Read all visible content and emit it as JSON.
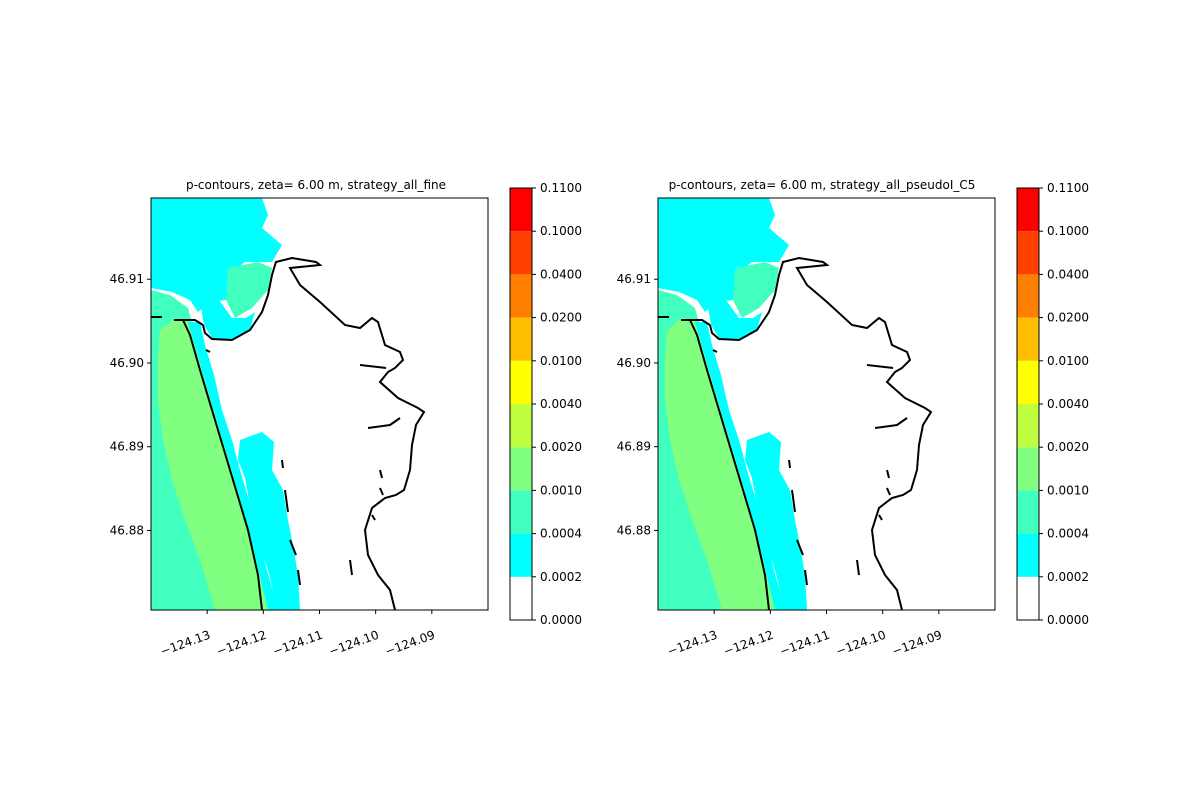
{
  "chart_data": [
    {
      "type": "heatmap",
      "title": "p-contours, zeta= 6.00 m, strategy_all_fine",
      "xlabel": "",
      "ylabel": "",
      "xlim": [
        -124.14,
        -124.08
      ],
      "ylim": [
        46.8705,
        46.9197
      ],
      "x_ticks": [
        -124.13,
        -124.12,
        -124.11,
        -124.1,
        -124.09
      ],
      "x_tick_labels": [
        "−124.13",
        "−124.12",
        "−124.11",
        "−124.10",
        "−124.09"
      ],
      "y_ticks": [
        46.88,
        46.89,
        46.9,
        46.91
      ],
      "y_tick_labels": [
        "46.88",
        "46.89",
        "46.90",
        "46.91"
      ],
      "colorbar_levels": [
        "0.0000",
        "0.0002",
        "0.0004",
        "0.0010",
        "0.0020",
        "0.0040",
        "0.0100",
        "0.0200",
        "0.0400",
        "0.1000",
        "0.1100"
      ],
      "colorbar_colors": [
        "#ffffff",
        "#00ffff",
        "#40ffbf",
        "#80ff80",
        "#bfff40",
        "#ffff00",
        "#ffbf00",
        "#ff8000",
        "#ff4000",
        "#ff0000"
      ]
    },
    {
      "type": "heatmap",
      "title": "p-contours, zeta= 6.00 m, strategy_all_pseudoI_C5",
      "xlabel": "",
      "ylabel": "",
      "xlim": [
        -124.14,
        -124.08
      ],
      "ylim": [
        46.8705,
        46.9197
      ],
      "x_ticks": [
        -124.13,
        -124.12,
        -124.11,
        -124.1,
        -124.09
      ],
      "x_tick_labels": [
        "−124.13",
        "−124.12",
        "−124.11",
        "−124.10",
        "−124.09"
      ],
      "y_ticks": [
        46.88,
        46.89,
        46.9,
        46.91
      ],
      "y_tick_labels": [
        "46.88",
        "46.89",
        "46.90",
        "46.91"
      ],
      "colorbar_levels": [
        "0.0000",
        "0.0002",
        "0.0004",
        "0.0010",
        "0.0020",
        "0.0040",
        "0.0100",
        "0.0200",
        "0.0400",
        "0.1000",
        "0.1100"
      ],
      "colorbar_colors": [
        "#ffffff",
        "#00ffff",
        "#40ffbf",
        "#80ff80",
        "#bfff40",
        "#ffff00",
        "#ffbf00",
        "#ff8000",
        "#ff4000",
        "#ff0000"
      ]
    }
  ]
}
